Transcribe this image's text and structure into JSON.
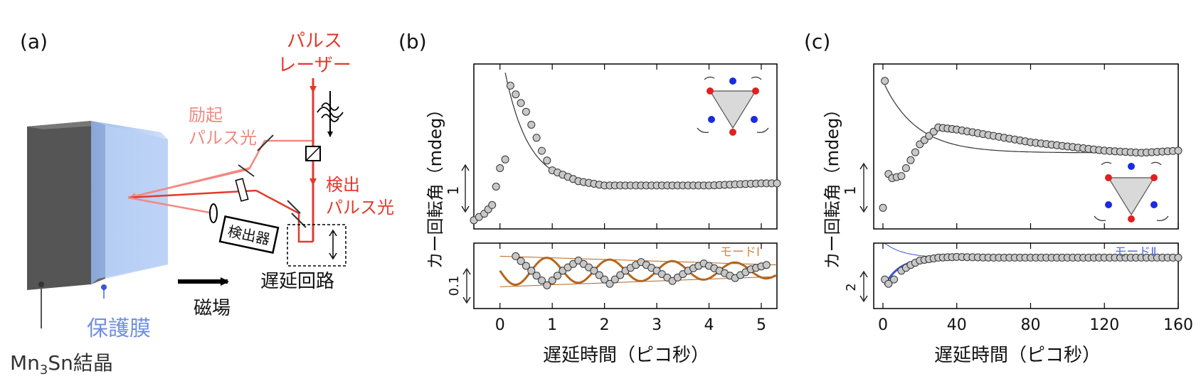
{
  "panel_a": {
    "label": "(a)",
    "laser_line1": "パルス",
    "laser_line2": "レーザー",
    "pump_line1": "励起",
    "pump_line2": "パルス光",
    "probe_line1": "検出",
    "probe_line2": "パルス光",
    "detector": "検出器",
    "delay_line": "遅延回路",
    "magnetic_field": "磁場",
    "protective_film": "保護膜",
    "crystal_prefix": "Mn",
    "crystal_subscript": "3",
    "crystal_suffix": "Sn結晶"
  },
  "panel_b": {
    "label": "(b)",
    "ylabel": "カー回転角（mdeg）",
    "xlabel": "遅延時間（ピコ秒）",
    "top_scale": "1",
    "bottom_scale": "0.1",
    "mode_label": "モードⅠ"
  },
  "panel_c": {
    "label": "(c)",
    "ylabel": "カー回転角（mdeg）",
    "xlabel": "遅延時間（ピコ秒）",
    "top_scale": "1",
    "bottom_scale": "2",
    "mode_label": "モードⅡ"
  },
  "colors": {
    "laser": "#e23a2d",
    "pump": "#f08a80",
    "mode1": "#b5651d",
    "mode2": "#3b55d6",
    "marker_fill": "#c8c8c8",
    "crystal_dark": "#5a5a5a",
    "film": "#a9c4f0"
  },
  "chart_data": [
    {
      "type": "scatter",
      "panel": "b-top",
      "xlim": [
        -0.5,
        5.3
      ],
      "x_ticks": [
        "0",
        "1",
        "2",
        "3",
        "4",
        "5"
      ],
      "ylabel": "カー回転角（mdeg）",
      "series": [
        {
          "values": [
            [
              -0.5,
              0.2
            ],
            [
              -0.3,
              0.35
            ],
            [
              -0.15,
              0.55
            ],
            [
              0.0,
              1.4
            ],
            [
              0.1,
              1.6
            ],
            [
              0.2,
              3.3
            ],
            [
              0.3,
              3.1
            ],
            [
              0.5,
              2.7
            ],
            [
              0.8,
              1.8
            ],
            [
              1.0,
              1.35
            ],
            [
              1.5,
              1.1
            ],
            [
              2.0,
              1.0
            ],
            [
              3.0,
              1.0
            ],
            [
              4.0,
              1.0
            ],
            [
              5.0,
              1.05
            ],
            [
              5.3,
              1.05
            ]
          ]
        }
      ]
    },
    {
      "type": "scatter",
      "panel": "b-bottom",
      "xlim": [
        -0.5,
        5.3
      ],
      "x_ticks": [
        "0",
        "1",
        "2",
        "3",
        "4",
        "5"
      ],
      "xlabel": "遅延時間（ピコ秒）",
      "series": [
        {
          "name": "モードⅠ",
          "values": [
            [
              0.3,
              0.16
            ],
            [
              0.6,
              0.06
            ],
            [
              0.9,
              -0.04
            ],
            [
              1.2,
              0.06
            ],
            [
              1.5,
              0.13
            ],
            [
              1.8,
              0.06
            ],
            [
              2.1,
              -0.03
            ],
            [
              2.4,
              0.06
            ],
            [
              2.7,
              0.12
            ],
            [
              3.0,
              0.06
            ],
            [
              3.3,
              -0.01
            ],
            [
              3.6,
              0.06
            ],
            [
              3.9,
              0.11
            ],
            [
              4.2,
              0.06
            ],
            [
              4.5,
              0.01
            ],
            [
              4.8,
              0.07
            ],
            [
              5.1,
              0.1
            ]
          ]
        }
      ]
    },
    {
      "type": "scatter",
      "panel": "c-top",
      "xlim": [
        -5,
        160
      ],
      "x_ticks": [
        "0",
        "40",
        "80",
        "120",
        "160"
      ],
      "ylabel": "カー回転角（mdeg）",
      "series": [
        {
          "values": [
            [
              0,
              1.0
            ],
            [
              1,
              4.0
            ],
            [
              3,
              1.8
            ],
            [
              5,
              1.7
            ],
            [
              10,
              1.75
            ],
            [
              20,
              2.5
            ],
            [
              30,
              2.9
            ],
            [
              40,
              2.85
            ],
            [
              60,
              2.7
            ],
            [
              80,
              2.55
            ],
            [
              100,
              2.45
            ],
            [
              120,
              2.35
            ],
            [
              140,
              2.3
            ],
            [
              160,
              2.35
            ]
          ]
        }
      ]
    },
    {
      "type": "scatter",
      "panel": "c-bottom",
      "xlim": [
        -5,
        160
      ],
      "x_ticks": [
        "0",
        "40",
        "80",
        "120",
        "160"
      ],
      "xlabel": "遅延時間（ピコ秒）",
      "series": [
        {
          "name": "モードⅡ",
          "values": [
            [
              1,
              -1.2
            ],
            [
              3,
              -1.5
            ],
            [
              6,
              -1.2
            ],
            [
              10,
              -0.6
            ],
            [
              15,
              -0.2
            ],
            [
              20,
              0.1
            ],
            [
              30,
              0.3
            ],
            [
              40,
              0.35
            ],
            [
              60,
              0.3
            ],
            [
              80,
              0.3
            ],
            [
              100,
              0.3
            ],
            [
              120,
              0.3
            ],
            [
              140,
              0.3
            ],
            [
              160,
              0.3
            ]
          ]
        }
      ]
    }
  ]
}
